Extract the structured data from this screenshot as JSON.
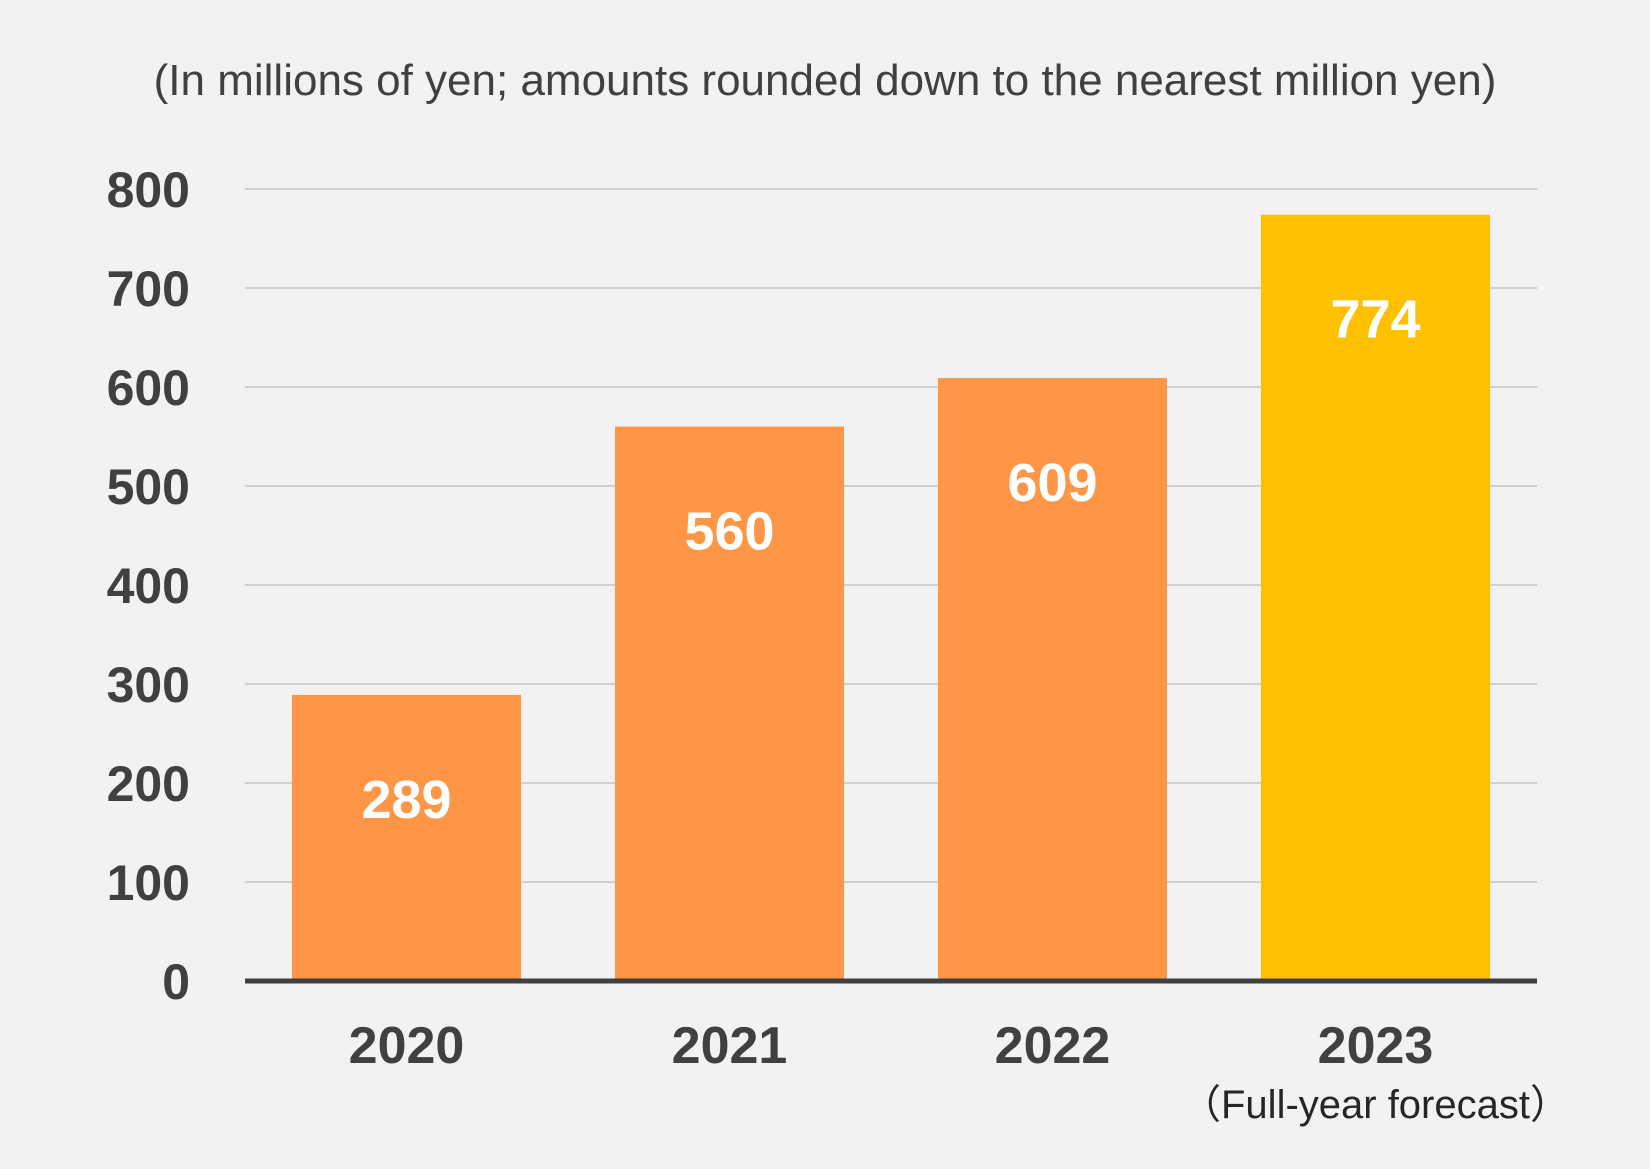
{
  "chart_data": {
    "type": "bar",
    "unit_note": "(In millions of yen; amounts rounded down to the nearest million yen)",
    "categories": [
      "2020",
      "2021",
      "2022",
      "2023"
    ],
    "category_sublabels": [
      "",
      "",
      "",
      "（Full-year forecast）"
    ],
    "values": [
      289,
      560,
      609,
      774
    ],
    "data_labels": [
      "289",
      "560",
      "609",
      "774"
    ],
    "bar_colors": [
      "#ff9646",
      "#ff9646",
      "#ff9646",
      "#ffc000"
    ],
    "ylim": [
      0,
      800
    ],
    "yticks": [
      0,
      100,
      200,
      300,
      400,
      500,
      600,
      700,
      800
    ],
    "grid": true,
    "legend": "none",
    "xlabel": "",
    "ylabel": ""
  },
  "colors": {
    "background": "#f2f2f2",
    "bar_actual": "#ff9646",
    "bar_forecast": "#ffc000",
    "gridline": "#d0d0d0",
    "axis": "#404040",
    "text": "#404040"
  }
}
